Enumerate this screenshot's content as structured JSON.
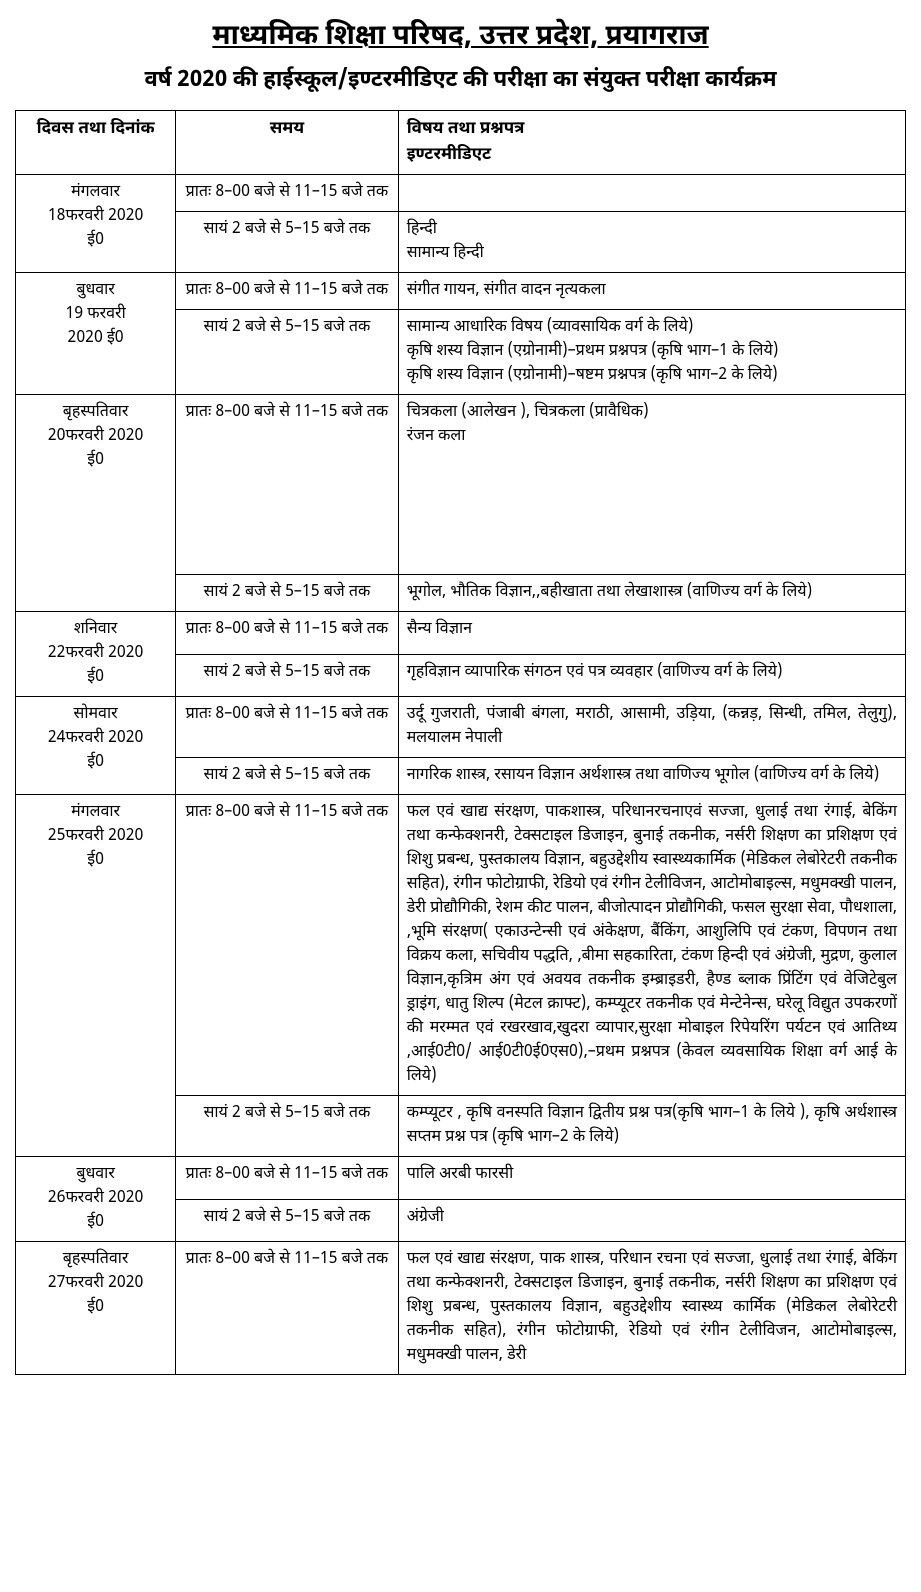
{
  "title": "माध्यमिक शिक्षा परिषद, उत्तर प्रदेश, प्रयागराज",
  "subtitle": "वर्ष 2020 की हाईस्कूल/इण्टरमीडिएट की परीक्षा का संयुक्त परीक्षा कार्यक्रम",
  "headers": {
    "date": "दिवस तथा दिनांक",
    "time": "समय",
    "subject": "विषय तथा प्रश्नपत्र\nइण्टरमीडिएट"
  },
  "rows": [
    {
      "date": "मंगलवार\n18फरवरी 2020\nई0",
      "slots": [
        {
          "time": "प्रातः 8–00 बजे से 11–15 बजे तक",
          "subject": ""
        },
        {
          "time": "सायं 2 बजे से 5–15 बजे तक",
          "subject": "हिन्दी\nसामान्य हिन्दी"
        }
      ]
    },
    {
      "date": "बुधवार\n19 फरवरी\n2020 ई0",
      "slots": [
        {
          "time": "प्रातः 8–00 बजे से 11–15 बजे तक",
          "subject": "संगीत गायन, संगीत वादन नृत्यकला"
        },
        {
          "time": "सायं 2 बजे से 5–15 बजे तक",
          "subject": "सामान्य आधारिक विषय (व्यावसायिक वर्ग के लिये)\nकृषि शस्य विज्ञान (एग्रोनामी)–प्रथम प्रश्नपत्र (कृषि भाग–1 के लिये)\nकृषि शस्य विज्ञान (एग्रोनामी)–षष्टम प्रश्नपत्र (कृषि भाग–2 के लिये)"
        }
      ]
    },
    {
      "date": "बृहस्पतिवार\n20फरवरी 2020\nई0",
      "slots": [
        {
          "time": "प्रातः 8–00 बजे से 11–15 बजे तक",
          "subject": "चित्रकला (आलेखन ), चित्रकला (प्रावैधिक)\nरंजन कला",
          "tall": true
        },
        {
          "time": "सायं 2 बजे से 5–15 बजे तक",
          "subject": "भूगोल, भौतिक विज्ञान,,बहीखाता तथा लेखाशास्त्र (वाणिज्य वर्ग के लिये)"
        }
      ]
    },
    {
      "date": "शनिवार\n22फरवरी 2020\nई0",
      "slots": [
        {
          "time": "प्रातः 8–00 बजे से 11–15 बजे तक",
          "subject": "सैन्य विज्ञान"
        },
        {
          "time": "सायं 2 बजे से 5–15 बजे तक",
          "subject": "गृहविज्ञान व्यापारिक संगठन एवं पत्र व्यवहार (वाणिज्य वर्ग के लिये)"
        }
      ]
    },
    {
      "date": "सोमवार\n24फरवरी 2020\nई0",
      "slots": [
        {
          "time": "प्रातः 8–00 बजे से 11–15 बजे तक",
          "subject": "उर्दू गुजराती, पंजाबी बंगला, मराठी, आसामी, उड़िया, (कन्नड़, सिन्धी, तमिल, तेलुगु), मलयालम नेपाली"
        },
        {
          "time": "सायं 2 बजे से 5–15 बजे तक",
          "subject": "नागरिक शास्त्र, रसायन विज्ञान अर्थशास्त्र तथा वाणिज्य भूगोल (वाणिज्य वर्ग के लिये)"
        }
      ]
    },
    {
      "date": "मंगलवार\n25फरवरी 2020\nई0",
      "slots": [
        {
          "time": "प्रातः 8–00 बजे से 11–15 बजे तक",
          "subject": "फल एवं खाद्य संरक्षण, पाकशास्त्र, परिधानरचनाएवं सज्जा, धुलाई तथा रंगाई, बेकिंग तथा कन्फेक्शनरी, टेक्सटाइल डिजाइन, बुनाई तकनीक, नर्सरी शिक्षण का प्रशिक्षण एवं शिशु प्रबन्ध, पुस्तकालय विज्ञान, बहुउद्देशीय स्वास्थ्यकार्मिक (मेडिकल लेबोरेटरी तकनीक सहित), रंगीन फोटोग्राफी, रेडियो एवं रंगीन टेलीविजन, आटोमोबाइल्स, मधुमक्खी पालन, डेरी प्रोद्यौगिकी, रेशम कीट पालन, बीजोत्पादन प्रोद्यौगिकी, फसल सुरक्षा सेवा, पौधशाला, ,भूमि संरक्षण( एकाउन्टेन्सी एवं अंकेक्षण, बैंकिंग, आशुलिपि एवं टंकण, विपणन तथा विक्रय कला, सचिवीय पद्धति, ,बीमा सहकारिता, टंकण हिन्दी एवं अंग्रेजी, मुद्रण, कुलाल विज्ञान,कृत्रिम अंग एवं अवयव तकनीक इम्ब्राइडरी, हैण्ड ब्लाक प्रिंटिंग एवं वेजिटेबुल ड्राइंग, धातु शिल्प (मेटल क्राफ्ट), कम्प्यूटर तकनीक एवं मेन्टेनेन्स, घरेलू विद्युत उपकरणों की मरम्मत एवं रखरखाव,खुदरा व्यापार,सुरक्षा मोबाइल रिपेयरिंग पर्यटन एवं आतिथ्य ,आई0टी0/ आई0टी0ई0एस0),–प्रथम प्रश्नपत्र (केवल व्यवसायिक शिक्षा वर्ग आई के लिये)"
        },
        {
          "time": "सायं 2 बजे से 5–15 बजे तक",
          "subject": "कम्प्यूटर , कृषि वनस्पति विज्ञान द्वितीय प्रश्न पत्र(कृषि भाग–1 के लिये ), कृषि अर्थशास्त्र सप्तम प्रश्न पत्र (कृषि भाग–2 के लिये)"
        }
      ]
    },
    {
      "date": "बुधवार\n26फरवरी 2020\nई0",
      "slots": [
        {
          "time": "प्रातः 8–00 बजे से 11–15 बजे तक",
          "subject": "पालि अरबी फारसी"
        },
        {
          "time": "सायं 2 बजे से 5–15 बजे तक",
          "subject": "अंग्रेजी"
        }
      ]
    },
    {
      "date": "बृहस्पतिवार\n27फरवरी 2020\nई0",
      "slots": [
        {
          "time": "प्रातः 8–00 बजे से 11–15 बजे तक",
          "subject": "फल एवं खाद्य संरक्षण, पाक शास्त्र, परिधान रचना एवं सज्जा, धुलाई तथा रंगाई, बेकिंग तथा कन्फेक्शनरी, टेक्सटाइल डिजाइन, बुनाई तकनीक, नर्सरी शिक्षण का प्रशिक्षण एवं शिशु प्रबन्ध, पुस्तकालय विज्ञान, बहुउद्देशीय स्वास्थ्य कार्मिक (मेडिकल लेबोरेटरी तकनीक सहित), रंगीन फोटोग्राफी, रेडियो एवं रंगीन टेलीविजन, आटोमोबाइल्स, मधुमक्खी पालन, डेरी"
        }
      ]
    }
  ]
}
